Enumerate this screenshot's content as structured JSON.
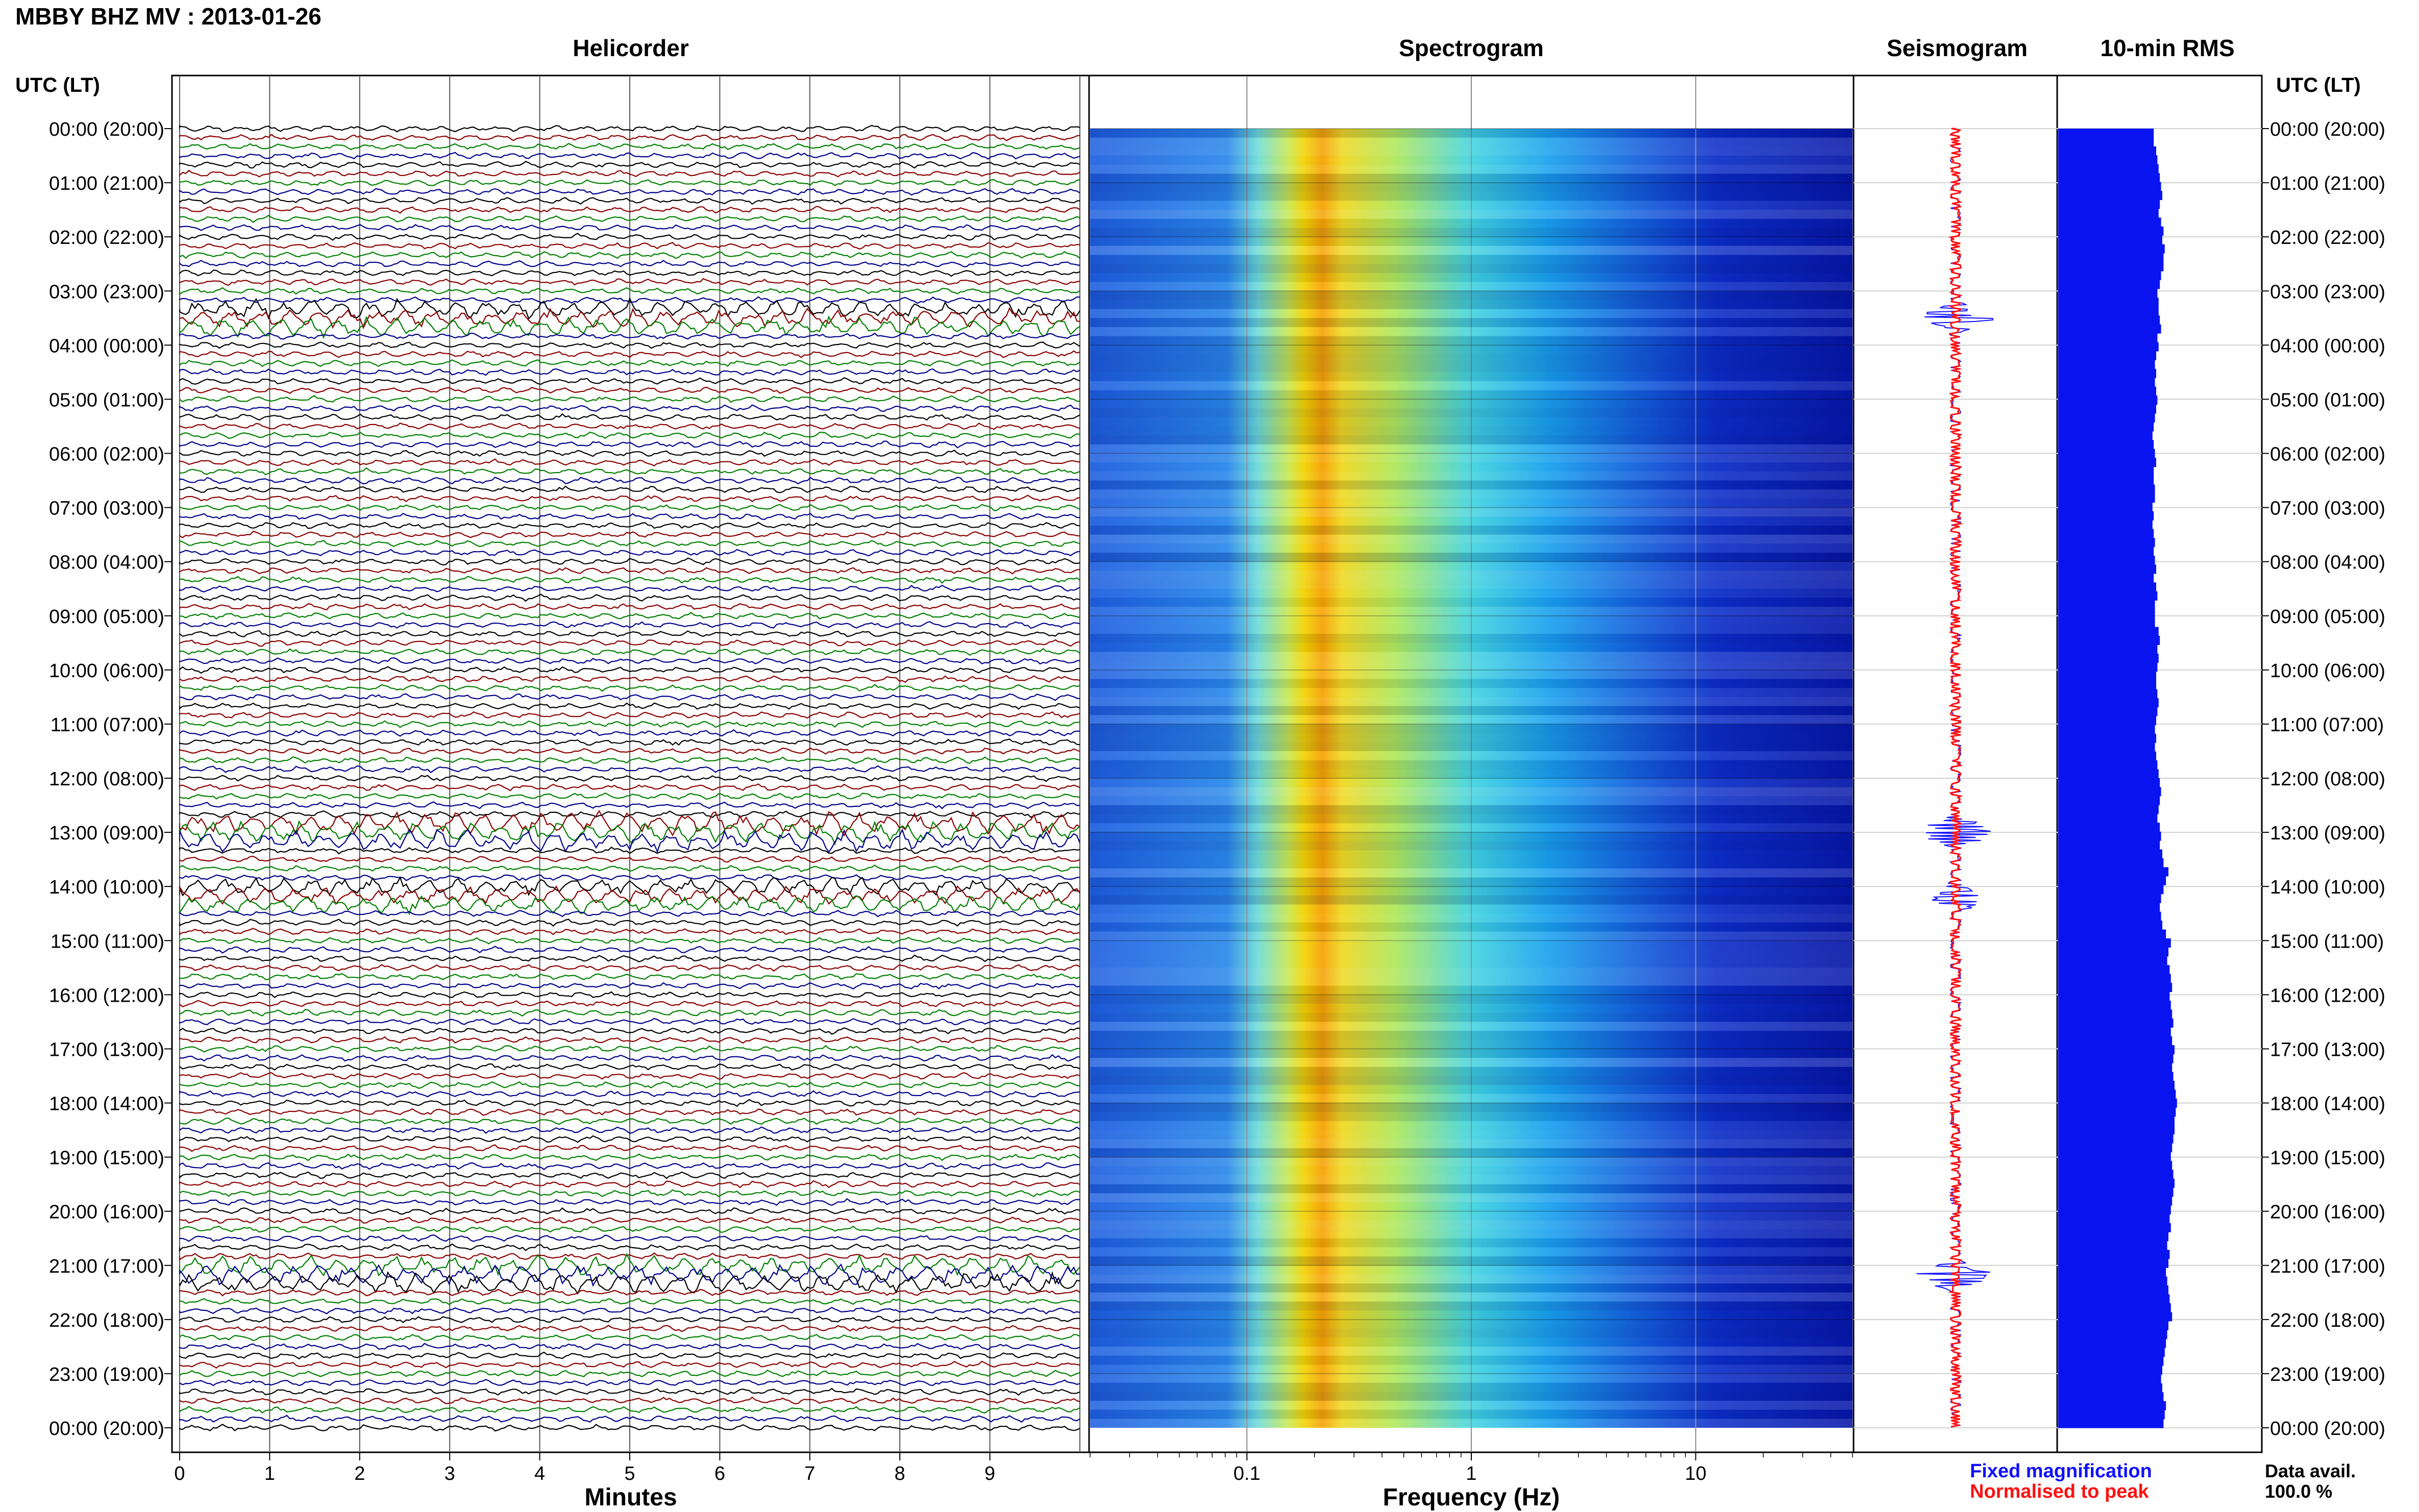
{
  "title": "MBBY BHZ MV : 2013-01-26",
  "panels": {
    "helicorder": "Helicorder",
    "spectrogram": "Spectrogram",
    "seismogram": "Seismogram",
    "rms": "10-min RMS"
  },
  "axis": {
    "time_label_left": "UTC (LT)",
    "time_label_right": "UTC (LT)",
    "minutes_label": "Minutes",
    "frequency_label": "Frequency (Hz)"
  },
  "legend": {
    "fixed": "Fixed magnification",
    "normalised": "Normalised to peak",
    "data_avail_label": "Data avail.",
    "data_avail_value": "100.0 %"
  },
  "colors": {
    "fixed": "#1010ff",
    "normalised": "#ff1010",
    "rms_bar": "#0a14f0",
    "trace_colors": [
      "#000000",
      "#8b0000",
      "#008000",
      "#00008b"
    ]
  },
  "chart_data": {
    "type": "multi-panel seismic plot",
    "time_ticks": [
      "00:00 (20:00)",
      "01:00 (21:00)",
      "02:00 (22:00)",
      "03:00 (23:00)",
      "04:00 (00:00)",
      "05:00 (01:00)",
      "06:00 (02:00)",
      "07:00 (03:00)",
      "08:00 (04:00)",
      "09:00 (05:00)",
      "10:00 (06:00)",
      "11:00 (07:00)",
      "12:00 (08:00)",
      "13:00 (09:00)",
      "14:00 (10:00)",
      "15:00 (11:00)",
      "16:00 (12:00)",
      "17:00 (13:00)",
      "18:00 (14:00)",
      "19:00 (15:00)",
      "20:00 (16:00)",
      "21:00 (17:00)",
      "22:00 (18:00)",
      "23:00 (19:00)",
      "00:00 (20:00)"
    ],
    "helicorder": {
      "xlabel": "Minutes",
      "xlim": [
        0,
        10
      ],
      "x_ticks": [
        "0",
        "1",
        "2",
        "3",
        "4",
        "5",
        "6",
        "7",
        "8",
        "9"
      ],
      "traces_per_hour": 6,
      "events": [
        {
          "hour": 3.5,
          "intensity": 0.8
        },
        {
          "hour": 13.0,
          "intensity": 1.0
        },
        {
          "hour": 14.2,
          "intensity": 0.7
        },
        {
          "hour": 21.2,
          "intensity": 0.9
        }
      ]
    },
    "spectrogram": {
      "xlabel": "Frequency (Hz)",
      "x_scale": "log",
      "xlim": [
        0.02,
        50
      ],
      "x_ticks": [
        "0.1",
        "1",
        "10"
      ],
      "peak_frequency_hz": 0.2
    },
    "rms": {
      "interval_minutes": 10,
      "values": [
        0.78,
        0.78,
        0.8,
        0.81,
        0.82,
        0.83,
        0.84,
        0.85,
        0.83,
        0.82,
        0.84,
        0.86,
        0.85,
        0.87,
        0.86,
        0.86,
        0.84,
        0.83,
        0.81,
        0.82,
        0.82,
        0.83,
        0.84,
        0.81,
        0.82,
        0.8,
        0.79,
        0.8,
        0.79,
        0.8,
        0.81,
        0.8,
        0.79,
        0.78,
        0.77,
        0.78,
        0.79,
        0.8,
        0.78,
        0.78,
        0.79,
        0.79,
        0.77,
        0.78,
        0.77,
        0.78,
        0.79,
        0.78,
        0.79,
        0.8,
        0.78,
        0.8,
        0.81,
        0.79,
        0.79,
        0.79,
        0.82,
        0.83,
        0.81,
        0.82,
        0.81,
        0.8,
        0.8,
        0.81,
        0.82,
        0.81,
        0.8,
        0.79,
        0.8,
        0.79,
        0.8,
        0.81,
        0.82,
        0.83,
        0.84,
        0.83,
        0.82,
        0.81,
        0.83,
        0.84,
        0.83,
        0.85,
        0.86,
        0.9,
        0.88,
        0.86,
        0.84,
        0.83,
        0.84,
        0.85,
        0.88,
        0.92,
        0.9,
        0.89,
        0.91,
        0.92,
        0.93,
        0.91,
        0.92,
        0.93,
        0.94,
        0.92,
        0.93,
        0.95,
        0.94,
        0.93,
        0.94,
        0.95,
        0.96,
        0.97,
        0.96,
        0.95,
        0.95,
        0.94,
        0.93,
        0.92,
        0.93,
        0.94,
        0.95,
        0.94,
        0.93,
        0.92,
        0.91,
        0.92,
        0.9,
        0.89,
        0.91,
        0.9,
        0.88,
        0.89,
        0.9,
        0.91,
        0.92,
        0.93,
        0.9,
        0.89,
        0.88,
        0.87,
        0.86,
        0.85,
        0.84,
        0.85,
        0.86,
        0.88,
        0.87,
        0.86
      ]
    }
  }
}
